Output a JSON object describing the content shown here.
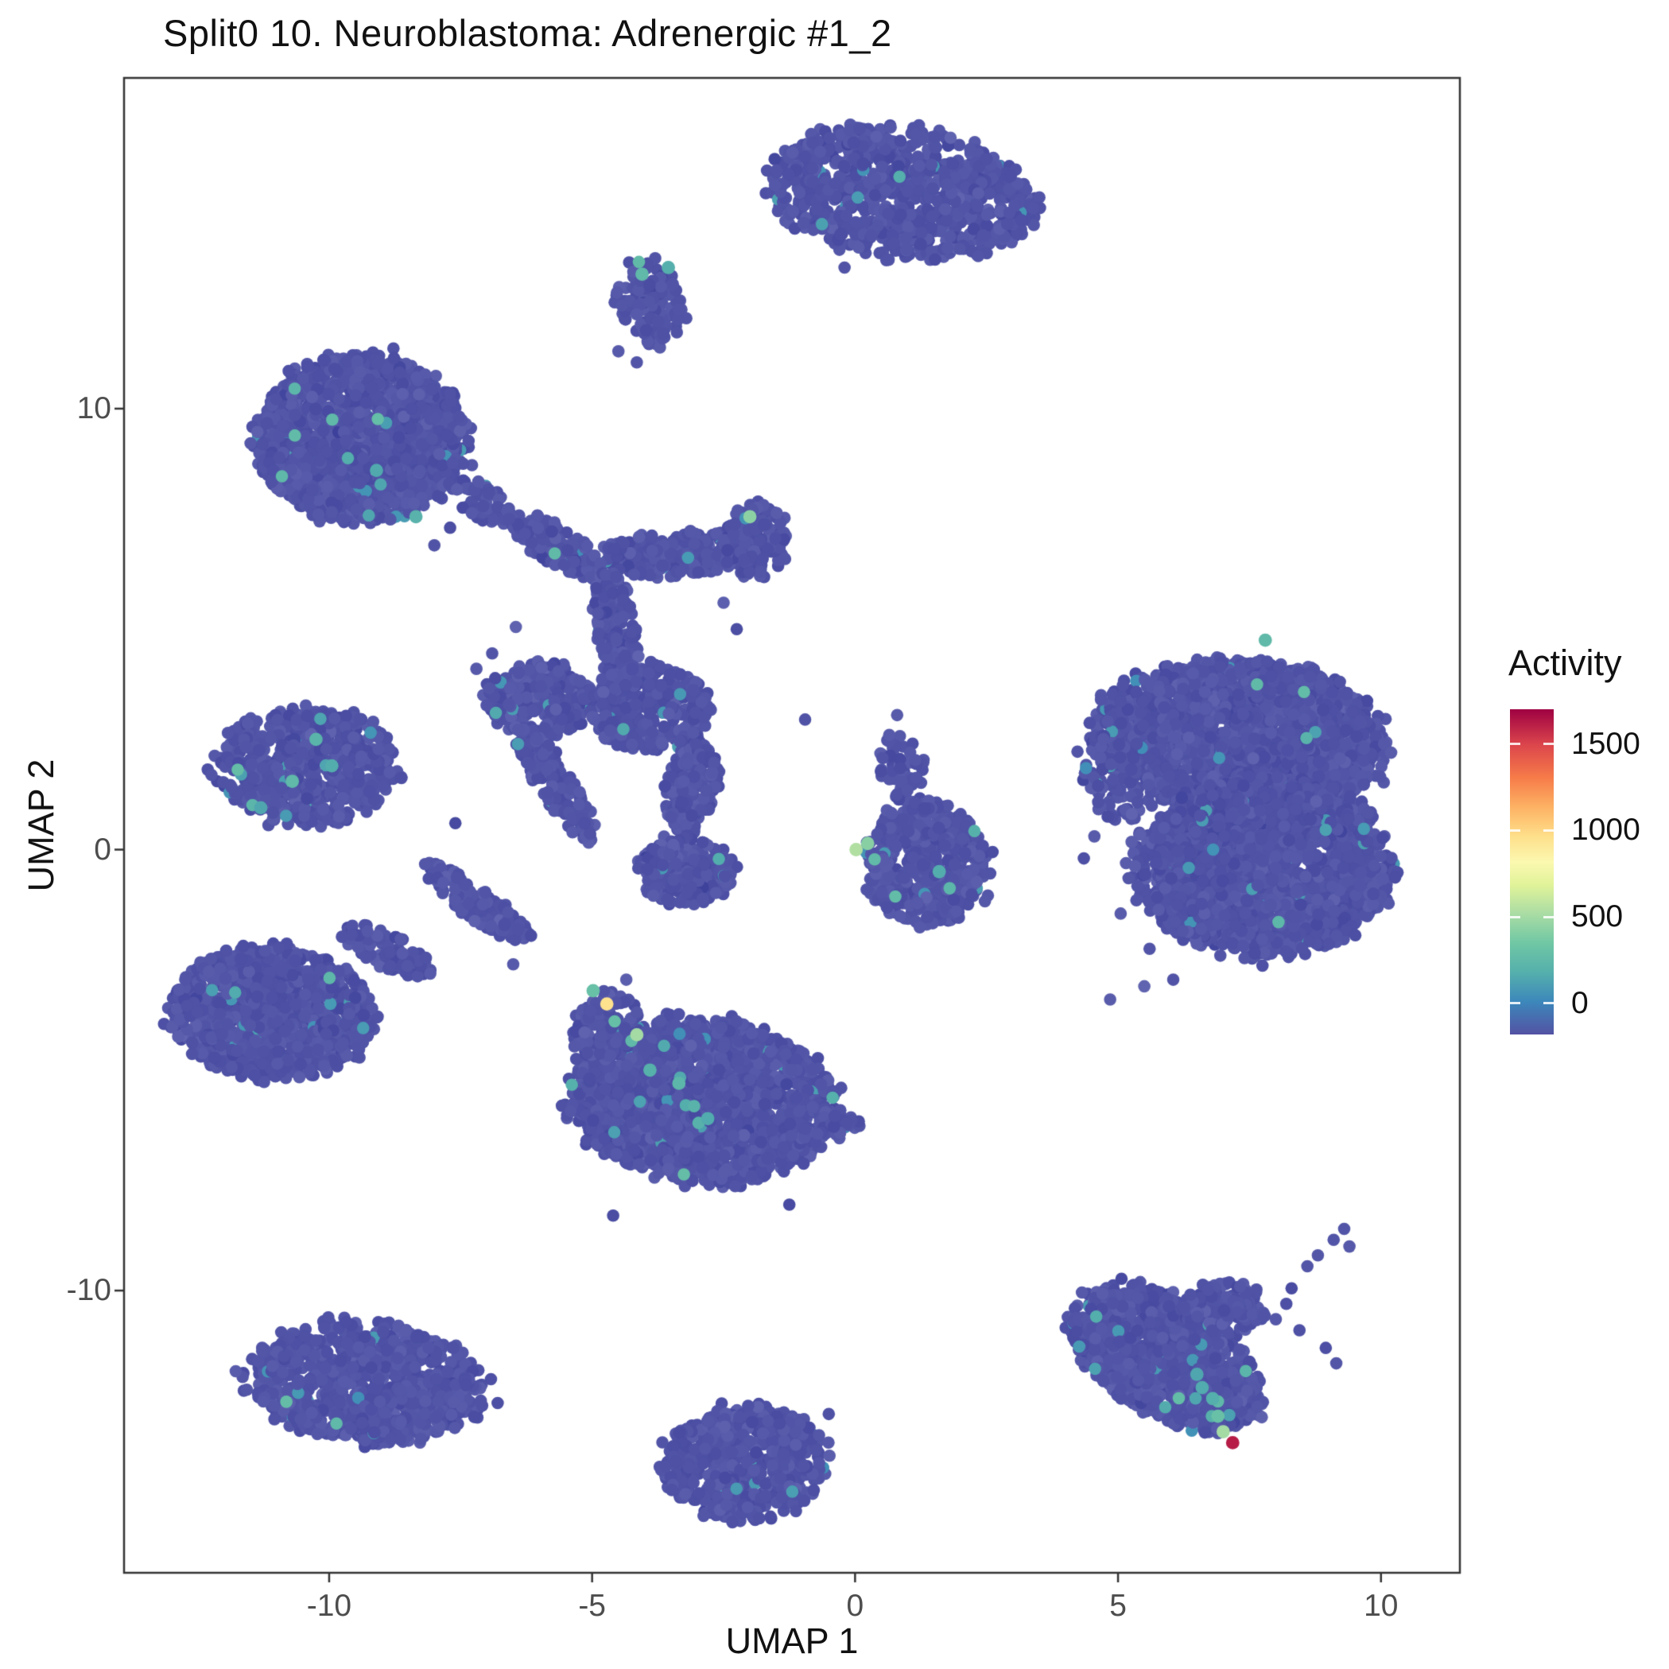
{
  "title": "Split0 10. Neuroblastoma: Adrenergic #1_2",
  "chart_data": {
    "type": "scatter",
    "title": "Split0 10. Neuroblastoma: Adrenergic #1_2",
    "xlabel": "UMAP 1",
    "ylabel": "UMAP 2",
    "xlim": [
      -13.9,
      11.5
    ],
    "ylim": [
      -16.4,
      17.5
    ],
    "x_ticks": [
      -10,
      -5,
      0,
      5,
      10
    ],
    "y_ticks": [
      -10,
      0,
      10
    ],
    "grid": false,
    "point_base_color": "#5153A4",
    "panel_border_color": "#333333",
    "legend": {
      "title": "Activity",
      "position": "right",
      "ticks": [
        0,
        500,
        1000,
        1500
      ],
      "bar_range": [
        -180,
        1700
      ],
      "gradient_stops": [
        {
          "t": 0.0,
          "color": "#5352A3"
        },
        {
          "t": 0.1,
          "color": "#3C87BB"
        },
        {
          "t": 0.19,
          "color": "#55AFAC"
        },
        {
          "t": 0.28,
          "color": "#6FC7A4"
        },
        {
          "t": 0.37,
          "color": "#A9DCA4"
        },
        {
          "t": 0.46,
          "color": "#E1F399"
        },
        {
          "t": 0.53,
          "color": "#FBF8B0"
        },
        {
          "t": 0.61,
          "color": "#FEDF8A"
        },
        {
          "t": 0.7,
          "color": "#FDB163"
        },
        {
          "t": 0.79,
          "color": "#F67B49"
        },
        {
          "t": 0.89,
          "color": "#DC464C"
        },
        {
          "t": 1.0,
          "color": "#9E0142"
        }
      ]
    },
    "clusters": [
      {
        "name": "top-leaf",
        "cx": 0.9,
        "cy": 14.9,
        "rx": 2.55,
        "ry": 1.45,
        "rot": -10,
        "n": 900,
        "accents": 3
      },
      {
        "name": "top-small",
        "cx": -3.9,
        "cy": 12.4,
        "rx": 0.6,
        "ry": 1.05,
        "rot": 12,
        "n": 130,
        "accents": 1
      },
      {
        "name": "upper-left",
        "cx": -9.4,
        "cy": 9.3,
        "rx": 2.0,
        "ry": 1.9,
        "rot": 0,
        "n": 1500,
        "accents": 8
      },
      {
        "name": "ul-tail",
        "cx": -7.1,
        "cy": 7.9,
        "rx": 0.8,
        "ry": 0.35,
        "rot": -35,
        "n": 70,
        "accents": 0
      },
      {
        "name": "net-diag-a",
        "cx": -5.7,
        "cy": 6.9,
        "rx": 1.15,
        "ry": 0.4,
        "rot": -38,
        "n": 170,
        "accents": 1
      },
      {
        "name": "net-horiz",
        "cx": -3.4,
        "cy": 6.7,
        "rx": 1.6,
        "ry": 0.5,
        "rot": 4,
        "n": 260,
        "accents": 1
      },
      {
        "name": "net-right-blob",
        "cx": -1.9,
        "cy": 7.0,
        "rx": 0.62,
        "ry": 0.85,
        "rot": 0,
        "n": 150,
        "accents": 0
      },
      {
        "name": "net-vert",
        "cx": -4.55,
        "cy": 5.0,
        "rx": 0.4,
        "ry": 1.35,
        "rot": 6,
        "n": 180,
        "accents": 0
      },
      {
        "name": "net-blob-w",
        "cx": -6.0,
        "cy": 3.4,
        "rx": 1.0,
        "ry": 0.85,
        "rot": 0,
        "n": 280,
        "accents": 1
      },
      {
        "name": "net-blob-c",
        "cx": -3.9,
        "cy": 3.2,
        "rx": 1.15,
        "ry": 1.0,
        "rot": 0,
        "n": 320,
        "accents": 1
      },
      {
        "name": "net-vert2",
        "cx": -3.1,
        "cy": 1.4,
        "rx": 0.5,
        "ry": 1.05,
        "rot": -8,
        "n": 170,
        "accents": 0
      },
      {
        "name": "net-blob-s",
        "cx": -3.2,
        "cy": -0.5,
        "rx": 0.9,
        "ry": 0.8,
        "rot": 0,
        "n": 260,
        "accents": 1
      },
      {
        "name": "net-diag-b",
        "cx": -5.7,
        "cy": 1.5,
        "rx": 1.5,
        "ry": 0.35,
        "rot": -62,
        "n": 150,
        "accents": 0
      },
      {
        "name": "net-diag-c",
        "cx": -7.2,
        "cy": -1.2,
        "rx": 1.3,
        "ry": 0.35,
        "rot": -42,
        "n": 140,
        "accents": 0
      },
      {
        "name": "left-arrow",
        "cx": -10.4,
        "cy": 1.9,
        "rx": 1.75,
        "ry": 1.3,
        "rot": 0,
        "n": 650,
        "accents": 6
      },
      {
        "name": "left-tri",
        "cx": -11.1,
        "cy": -3.7,
        "rx": 1.9,
        "ry": 1.5,
        "rot": -5,
        "n": 1000,
        "accents": 2
      },
      {
        "name": "left-tri-tail",
        "cx": -8.9,
        "cy": -2.3,
        "rx": 1.0,
        "ry": 0.4,
        "rot": -32,
        "n": 90,
        "accents": 0
      },
      {
        "name": "center-blob",
        "cx": -2.9,
        "cy": -5.7,
        "rx": 2.5,
        "ry": 1.85,
        "rot": -8,
        "n": 1800,
        "accents": 10
      },
      {
        "name": "center-spur",
        "cx": -4.75,
        "cy": -4.0,
        "rx": 0.6,
        "ry": 0.8,
        "rot": -25,
        "n": 100,
        "accents": 2
      },
      {
        "name": "center-tail",
        "cx": -0.6,
        "cy": -6.3,
        "rx": 0.75,
        "ry": 0.3,
        "rot": 8,
        "n": 45,
        "accents": 0
      },
      {
        "name": "mid-small",
        "cx": 1.35,
        "cy": -0.3,
        "rx": 1.2,
        "ry": 1.4,
        "rot": 8,
        "n": 450,
        "accents": 4
      },
      {
        "name": "mid-small-tail",
        "cx": 0.95,
        "cy": 1.7,
        "rx": 0.45,
        "ry": 0.95,
        "rot": 18,
        "n": 70,
        "accents": 0
      },
      {
        "name": "right-big-upper",
        "cx": 7.3,
        "cy": 2.5,
        "rx": 2.75,
        "ry": 1.8,
        "rot": -5,
        "n": 2000,
        "accents": 4
      },
      {
        "name": "right-big-lower",
        "cx": 7.8,
        "cy": -0.4,
        "rx": 2.4,
        "ry": 2.0,
        "rot": 0,
        "n": 1900,
        "accents": 3
      },
      {
        "name": "right-west-frill",
        "cx": 4.9,
        "cy": 1.6,
        "rx": 0.55,
        "ry": 1.0,
        "rot": 10,
        "n": 80,
        "accents": 0
      },
      {
        "name": "bottom-left",
        "cx": -9.3,
        "cy": -12.1,
        "rx": 2.25,
        "ry": 1.35,
        "rot": -7,
        "n": 850,
        "accents": 2
      },
      {
        "name": "bottom-center",
        "cx": -2.1,
        "cy": -13.9,
        "rx": 1.55,
        "ry": 1.3,
        "rot": 8,
        "n": 620,
        "accents": 1
      },
      {
        "name": "br-triangle",
        "cx": 5.9,
        "cy": -11.5,
        "rx": 2.1,
        "ry": 1.25,
        "rot": -40,
        "n": 850,
        "accents": 6
      },
      {
        "name": "br-corner",
        "cx": 7.0,
        "cy": -10.4,
        "rx": 0.8,
        "ry": 0.6,
        "rot": 0,
        "n": 150,
        "accents": 0
      },
      {
        "name": "br-apex",
        "cx": 6.9,
        "cy": -12.6,
        "rx": 0.5,
        "ry": 0.75,
        "rot": -30,
        "n": 110,
        "accents": 3
      }
    ],
    "satellite_points": [
      [
        -6.45,
        5.05
      ],
      [
        -6.9,
        4.45
      ],
      [
        -7.2,
        4.1
      ],
      [
        -2.5,
        5.6
      ],
      [
        -2.25,
        5.0
      ],
      [
        -0.95,
        2.95
      ],
      [
        0.8,
        3.05
      ],
      [
        0.65,
        2.6
      ],
      [
        -7.6,
        0.6
      ],
      [
        -6.5,
        -2.6
      ],
      [
        -4.35,
        -2.95
      ],
      [
        -4.6,
        -8.3
      ],
      [
        -1.25,
        -8.05
      ],
      [
        -0.5,
        -12.8
      ],
      [
        5.2,
        -0.65
      ],
      [
        5.35,
        -1.15
      ],
      [
        5.05,
        -1.45
      ],
      [
        5.6,
        -2.25
      ],
      [
        6.05,
        -2.95
      ],
      [
        4.55,
        0.3
      ],
      [
        4.35,
        -0.2
      ],
      [
        4.85,
        -3.4
      ],
      [
        5.5,
        -3.1
      ],
      [
        8.0,
        -10.65
      ],
      [
        8.2,
        -10.3
      ],
      [
        8.45,
        -10.9
      ],
      [
        8.3,
        -9.95
      ],
      [
        8.6,
        -9.45
      ],
      [
        8.8,
        -9.2
      ],
      [
        9.1,
        -8.85
      ],
      [
        9.3,
        -8.6
      ],
      [
        9.4,
        -9.0
      ],
      [
        8.95,
        -11.3
      ],
      [
        9.15,
        -11.65
      ],
      [
        -4.5,
        11.3
      ],
      [
        -4.15,
        11.05
      ],
      [
        -0.2,
        13.2
      ],
      [
        -8.0,
        6.9
      ],
      [
        -7.7,
        7.3
      ]
    ],
    "highlight_points": [
      {
        "x": -4.72,
        "y": -3.5,
        "value": 950
      },
      {
        "x": -4.98,
        "y": -3.2,
        "value": 300
      },
      {
        "x": -4.15,
        "y": -4.2,
        "value": 500
      },
      {
        "x": -3.9,
        "y": -5.0,
        "value": 190
      },
      {
        "x": -3.35,
        "y": -5.3,
        "value": 230
      },
      {
        "x": -2.8,
        "y": -6.1,
        "value": 160
      },
      {
        "x": -2.0,
        "y": 7.55,
        "value": 430
      },
      {
        "x": 0.02,
        "y": 0.0,
        "value": 540
      },
      {
        "x": 0.24,
        "y": 0.14,
        "value": 420
      },
      {
        "x": 1.6,
        "y": -0.5,
        "value": 170
      },
      {
        "x": -4.05,
        "y": 13.05,
        "value": 250
      },
      {
        "x": -3.55,
        "y": 13.2,
        "value": 180
      },
      {
        "x": 7.8,
        "y": 4.75,
        "value": 250
      },
      {
        "x": -10.25,
        "y": 2.5,
        "value": 210
      },
      {
        "x": -10.7,
        "y": 1.55,
        "value": 250
      },
      {
        "x": -9.95,
        "y": 1.9,
        "value": 170
      },
      {
        "x": -11.3,
        "y": 0.95,
        "value": 140
      },
      {
        "x": -8.35,
        "y": 7.55,
        "value": 200
      },
      {
        "x": -9.1,
        "y": 8.6,
        "value": 150
      },
      {
        "x": 6.5,
        "y": -11.9,
        "value": 140
      },
      {
        "x": 6.6,
        "y": -12.2,
        "value": 160
      },
      {
        "x": 6.8,
        "y": -12.45,
        "value": 180
      },
      {
        "x": 6.9,
        "y": -12.85,
        "value": 300
      },
      {
        "x": 7.0,
        "y": -13.2,
        "value": 500
      },
      {
        "x": 7.18,
        "y": -13.45,
        "value": 1620
      }
    ]
  }
}
